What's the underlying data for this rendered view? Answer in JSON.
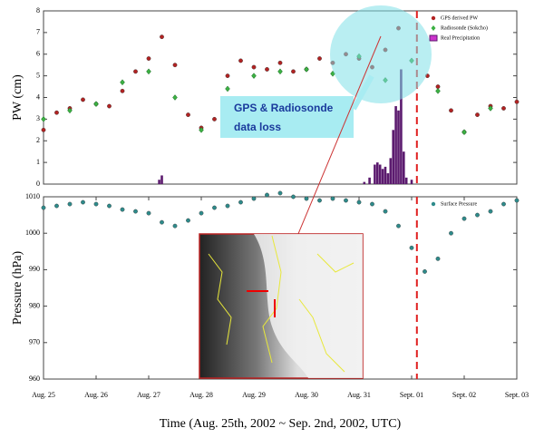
{
  "chart_data": [
    {
      "type": "scatter",
      "ylabel": "PW (cm)",
      "xlim": [
        0,
        9
      ],
      "ylim": [
        0,
        8
      ],
      "yticks": [
        0,
        1,
        2,
        3,
        4,
        5,
        6,
        7,
        8
      ],
      "legend": "upper right",
      "vline": 7.1,
      "annotation": [
        "GPS & Radiosonde",
        "data loss"
      ],
      "series": [
        {
          "name": "GPS derived PW",
          "color": "#b22222",
          "marker": "circle",
          "x": [
            0,
            0.25,
            0.5,
            0.75,
            1,
            1.25,
            1.5,
            1.75,
            2,
            2.25,
            2.5,
            2.75,
            3,
            3.25,
            3.5,
            3.75,
            4,
            4.25,
            4.5,
            4.75,
            5,
            5.25,
            5.5,
            5.75,
            6,
            6.25,
            6.5,
            6.75,
            7.3,
            7.5,
            7.75,
            8,
            8.25,
            8.5,
            8.75,
            9
          ],
          "values": [
            2.5,
            3.3,
            3.5,
            3.9,
            3.7,
            3.6,
            4.3,
            5.2,
            5.8,
            6.8,
            5.5,
            3.2,
            2.6,
            3.0,
            5.0,
            5.7,
            5.4,
            5.3,
            5.6,
            5.2,
            5.3,
            5.8,
            5.6,
            6.0,
            5.8,
            5.4,
            6.2,
            7.2,
            5.0,
            4.5,
            3.4,
            2.4,
            3.2,
            3.6,
            3.5,
            3.8
          ]
        },
        {
          "name": "Radiosonde (Sokcho)",
          "color": "#3cb043",
          "marker": "diamond",
          "x": [
            0,
            0.5,
            1,
            1.5,
            2,
            2.5,
            3,
            3.5,
            4,
            4.5,
            5,
            5.5,
            6,
            6.5,
            7,
            7.5,
            8,
            8.5
          ],
          "values": [
            3.0,
            3.4,
            3.7,
            4.7,
            5.2,
            4.0,
            2.5,
            4.4,
            5.0,
            5.2,
            5.3,
            5.1,
            5.9,
            4.8,
            5.7,
            4.3,
            2.4,
            3.5
          ]
        },
        {
          "name": "Real Precipitation",
          "color": "#5b1a6e",
          "marker": "bar",
          "x": [
            2.2,
            2.25,
            6.1,
            6.2,
            6.3,
            6.35,
            6.4,
            6.45,
            6.5,
            6.55,
            6.6,
            6.65,
            6.7,
            6.75,
            6.8,
            6.85,
            6.9,
            7.0
          ],
          "values": [
            0.2,
            0.4,
            0.1,
            0.3,
            0.9,
            1.0,
            0.9,
            0.7,
            0.8,
            0.5,
            1.2,
            2.5,
            3.6,
            3.4,
            5.3,
            1.5,
            0.3,
            0.2
          ]
        }
      ]
    },
    {
      "type": "scatter",
      "ylabel": "Pressure (hPa)",
      "xlabel": "Time (Aug. 25th, 2002 ~ Sep. 2nd, 2002, UTC)",
      "xlim": [
        0,
        9
      ],
      "ylim": [
        960,
        1010
      ],
      "yticks": [
        960,
        970,
        980,
        990,
        1000,
        1010
      ],
      "xticks": [
        {
          "value": 0,
          "label": "Aug. 25"
        },
        {
          "value": 1,
          "label": "Aug. 26"
        },
        {
          "value": 2,
          "label": "Aug. 27"
        },
        {
          "value": 3,
          "label": "Aug. 28"
        },
        {
          "value": 4,
          "label": "Aug. 29"
        },
        {
          "value": 5,
          "label": "Aug. 30"
        },
        {
          "value": 6,
          "label": "Aug. 31"
        },
        {
          "value": 7,
          "label": "Sept. 01"
        },
        {
          "value": 8,
          "label": "Sept. 02"
        },
        {
          "value": 9,
          "label": "Sept. 03"
        }
      ],
      "legend": "upper right",
      "vline": 7.1,
      "series": [
        {
          "name": "Surface Pressure",
          "color": "#2e8b8b",
          "marker": "circle",
          "x": [
            0,
            0.25,
            0.5,
            0.75,
            1,
            1.25,
            1.5,
            1.75,
            2,
            2.25,
            2.5,
            2.75,
            3,
            3.25,
            3.5,
            3.75,
            4,
            4.25,
            4.5,
            4.75,
            5,
            5.25,
            5.5,
            5.75,
            6,
            6.25,
            6.5,
            6.75,
            7,
            7.25,
            7.5,
            7.75,
            8,
            8.25,
            8.5,
            8.75,
            9
          ],
          "values": [
            1007,
            1007.5,
            1008,
            1008.5,
            1008,
            1007.5,
            1006.5,
            1006,
            1005.5,
            1003,
            1002,
            1003.5,
            1005.5,
            1007,
            1007.5,
            1008.5,
            1009.5,
            1010.5,
            1011,
            1010,
            1009.5,
            1009,
            1009.5,
            1009,
            1008.5,
            1008,
            1006,
            1002,
            996,
            989.5,
            993,
            1000,
            1004,
            1005,
            1006,
            1008,
            1009
          ]
        }
      ]
    }
  ]
}
